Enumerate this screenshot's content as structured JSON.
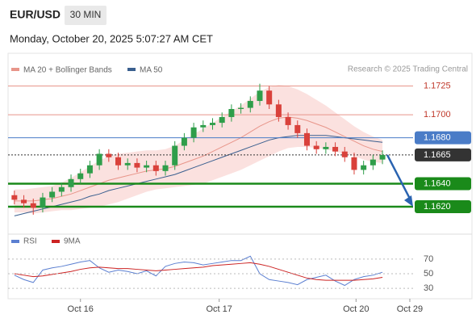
{
  "header": {
    "symbol": "EUR/USD",
    "interval": "30 MIN",
    "datetime": "Monday, October 20, 2025 5:07:27 AM CET",
    "credit": "Research © 2025 Trading Central"
  },
  "chart_data": [
    {
      "type": "candlestick",
      "legend": [
        "MA 20 + Bollinger Bands",
        "MA 50"
      ],
      "legend_colors": [
        "#e8958a",
        "#3a5f8f"
      ],
      "xlim": [
        0,
        43
      ],
      "xticks": [
        {
          "value": 7.5,
          "label": "Oct 16"
        },
        {
          "value": 22.2,
          "label": "Oct 17"
        },
        {
          "value": 36.7,
          "label": "Oct 20"
        },
        {
          "value": 42.4,
          "label": "Oct 29"
        }
      ],
      "ylim": [
        1.1601,
        1.1731
      ],
      "up_color": "#2f9e4a",
      "down_color": "#d9413b",
      "open": [
        1.163,
        1.1626,
        1.1623,
        1.1619,
        1.1628,
        1.1633,
        1.1637,
        1.1644,
        1.1649,
        1.1656,
        1.1666,
        1.1663,
        1.1656,
        1.1658,
        1.1654,
        1.1656,
        1.1651,
        1.1656,
        1.1673,
        1.168,
        1.1689,
        1.1691,
        1.1693,
        1.1698,
        1.1705,
        1.1706,
        1.1712,
        1.1721,
        1.1709,
        1.1698,
        1.1691,
        1.1684,
        1.1673,
        1.167,
        1.1672,
        1.1668,
        1.1663,
        1.1652,
        1.1656,
        1.1661
      ],
      "high": [
        1.1634,
        1.163,
        1.1627,
        1.1632,
        1.1637,
        1.1641,
        1.1648,
        1.1653,
        1.166,
        1.167,
        1.167,
        1.1667,
        1.1662,
        1.1662,
        1.166,
        1.166,
        1.166,
        1.1677,
        1.1684,
        1.1693,
        1.1695,
        1.1697,
        1.1702,
        1.1709,
        1.171,
        1.1716,
        1.1727,
        1.1725,
        1.1713,
        1.1702,
        1.1695,
        1.1688,
        1.1677,
        1.1676,
        1.1676,
        1.1672,
        1.1667,
        1.166,
        1.1665,
        1.1669
      ],
      "low": [
        1.1622,
        1.1619,
        1.1613,
        1.1615,
        1.1624,
        1.1629,
        1.1633,
        1.164,
        1.1645,
        1.1652,
        1.1659,
        1.1652,
        1.1652,
        1.165,
        1.165,
        1.1647,
        1.1647,
        1.1652,
        1.1669,
        1.1676,
        1.1685,
        1.1687,
        1.1689,
        1.1694,
        1.1701,
        1.1702,
        1.1708,
        1.1705,
        1.1694,
        1.1687,
        1.168,
        1.1669,
        1.1666,
        1.1666,
        1.1664,
        1.1659,
        1.1648,
        1.1648,
        1.1652,
        1.1657
      ],
      "close": [
        1.1626,
        1.1623,
        1.1619,
        1.1628,
        1.1633,
        1.1637,
        1.1644,
        1.1649,
        1.1656,
        1.1666,
        1.1663,
        1.1656,
        1.1658,
        1.1654,
        1.1656,
        1.1651,
        1.1656,
        1.1673,
        1.168,
        1.1689,
        1.1691,
        1.1693,
        1.1698,
        1.1705,
        1.1706,
        1.1712,
        1.1721,
        1.1709,
        1.1698,
        1.1691,
        1.1684,
        1.1673,
        1.167,
        1.1672,
        1.1668,
        1.1663,
        1.1652,
        1.1656,
        1.1661,
        1.1665
      ],
      "ma20": [
        1.1625,
        1.1625,
        1.1625,
        1.1626,
        1.1627,
        1.1629,
        1.1631,
        1.1634,
        1.1637,
        1.164,
        1.1643,
        1.1645,
        1.1647,
        1.1649,
        1.1651,
        1.1652,
        1.1653,
        1.1655,
        1.1658,
        1.1661,
        1.1664,
        1.1668,
        1.1672,
        1.1676,
        1.168,
        1.1685,
        1.169,
        1.1694,
        1.1697,
        1.1698,
        1.1697,
        1.1695,
        1.1692,
        1.1689,
        1.1685,
        1.1681,
        1.1677,
        1.1673,
        1.167,
        1.1668
      ],
      "bb_upper": [
        1.1635,
        1.1635,
        1.1636,
        1.1637,
        1.1638,
        1.1641,
        1.1645,
        1.165,
        1.1655,
        1.166,
        1.1664,
        1.1666,
        1.1667,
        1.1668,
        1.1669,
        1.1669,
        1.167,
        1.1673,
        1.1678,
        1.1683,
        1.1688,
        1.1693,
        1.1698,
        1.1703,
        1.1708,
        1.1714,
        1.172,
        1.1724,
        1.1726,
        1.1725,
        1.1722,
        1.1718,
        1.1713,
        1.1708,
        1.1702,
        1.1696,
        1.169,
        1.1685,
        1.1681,
        1.1678
      ],
      "bb_lower": [
        1.1615,
        1.1615,
        1.1614,
        1.1615,
        1.1616,
        1.1617,
        1.1617,
        1.1618,
        1.1619,
        1.162,
        1.1622,
        1.1624,
        1.1627,
        1.163,
        1.1633,
        1.1635,
        1.1636,
        1.1637,
        1.1638,
        1.1639,
        1.164,
        1.1643,
        1.1646,
        1.1649,
        1.1652,
        1.1656,
        1.166,
        1.1664,
        1.1668,
        1.1671,
        1.1672,
        1.1672,
        1.1671,
        1.167,
        1.1668,
        1.1666,
        1.1664,
        1.1661,
        1.1659,
        1.1658
      ],
      "ma50": [
        1.1612,
        1.1614,
        1.1616,
        1.1618,
        1.162,
        1.1622,
        1.1624,
        1.1626,
        1.1629,
        1.1631,
        1.1634,
        1.1636,
        1.1638,
        1.164,
        1.1642,
        1.1644,
        1.1646,
        1.1648,
        1.1651,
        1.1654,
        1.1657,
        1.166,
        1.1663,
        1.1666,
        1.1669,
        1.1672,
        1.1675,
        1.1678,
        1.168,
        1.1681,
        1.1682,
        1.1682,
        1.1682,
        1.1682,
        1.1681,
        1.168,
        1.1679,
        1.1678,
        1.1677,
        1.1676
      ],
      "levels": [
        {
          "value": 1.1725,
          "label": "1.1725",
          "color": "#e8958a",
          "text_color": "#c0392b",
          "badge": false,
          "width": 1,
          "dotted": false
        },
        {
          "value": 1.17,
          "label": "1.1700",
          "color": "#e8958a",
          "text_color": "#c0392b",
          "badge": false,
          "width": 1,
          "dotted": false
        },
        {
          "value": 1.168,
          "label": "1.1680",
          "color": "#4a7cc7",
          "text_color": "#ffffff",
          "badge": true,
          "width": 1,
          "dotted": false
        },
        {
          "value": 1.1665,
          "label": "1.1665",
          "color": "#333333",
          "text_color": "#ffffff",
          "badge": true,
          "width": 1,
          "dotted": true
        },
        {
          "value": 1.164,
          "label": "1.1640",
          "color": "#1a8a1a",
          "text_color": "#ffffff",
          "badge": true,
          "width": 2.5,
          "dotted": false
        },
        {
          "value": 1.162,
          "label": "1.1620",
          "color": "#1a8a1a",
          "text_color": "#ffffff",
          "badge": true,
          "width": 2.5,
          "dotted": false
        }
      ]
    },
    {
      "type": "line",
      "legend": [
        "RSI",
        "9MA"
      ],
      "ylim": [
        18,
        82
      ],
      "yticks": [
        70,
        50,
        30
      ],
      "series": [
        {
          "name": "RSI",
          "color": "#5b7fd1",
          "values": [
            48,
            42,
            38,
            55,
            58,
            60,
            63,
            66,
            68,
            58,
            52,
            55,
            53,
            50,
            54,
            47,
            60,
            64,
            66,
            65,
            62,
            64,
            66,
            68,
            68,
            74,
            50,
            42,
            40,
            38,
            35,
            42,
            45,
            48,
            40,
            34,
            42,
            46,
            48,
            52
          ]
        },
        {
          "name": "9MA",
          "color": "#cc2222",
          "values": [
            50,
            48,
            46,
            47,
            49,
            51,
            53,
            56,
            58,
            59,
            58,
            57,
            57,
            56,
            55,
            54,
            55,
            56,
            57,
            58,
            59,
            61,
            62,
            63,
            64,
            65,
            63,
            60,
            56,
            52,
            48,
            44,
            42,
            41,
            41,
            41,
            41,
            42,
            43,
            45
          ]
        }
      ]
    }
  ]
}
